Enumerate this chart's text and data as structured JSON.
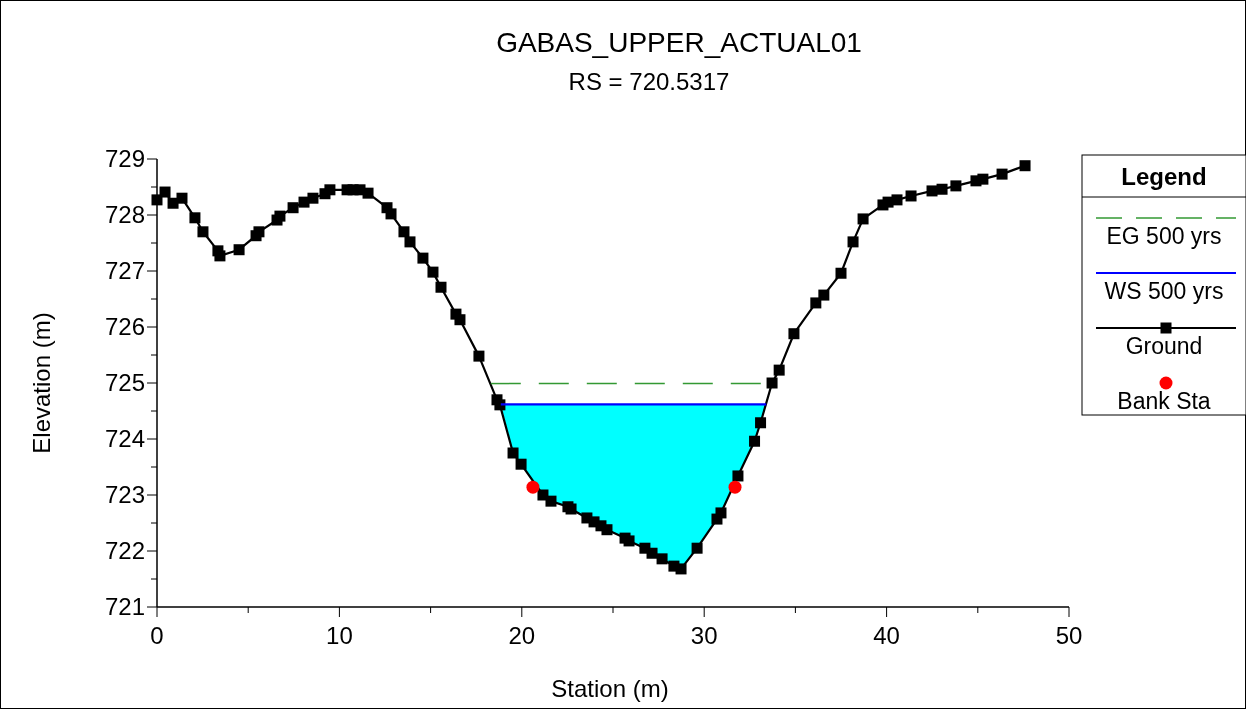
{
  "chart_data": {
    "type": "line",
    "title": "GABAS_UPPER_ACTUAL01",
    "subtitle": "RS = 720.5317",
    "xlabel": "Station (m)",
    "ylabel": "Elevation (m)",
    "xlim": [
      0,
      50
    ],
    "xticks": [
      0,
      10,
      20,
      30,
      40,
      50
    ],
    "ylim": [
      721,
      729
    ],
    "yticks": [
      721,
      722,
      723,
      724,
      725,
      726,
      727,
      728,
      729
    ],
    "legend_title": "Legend",
    "legend": "right",
    "grid": false,
    "series": [
      {
        "name": "EG 500 yrs",
        "type": "line",
        "color": "#339933",
        "line_style": "dashed",
        "marker": "none",
        "x": [
          18.3,
          33.7
        ],
        "values": [
          724.99,
          724.99
        ]
      },
      {
        "name": "WS 500 yrs",
        "type": "line",
        "color": "#0000ff",
        "line_style": "solid",
        "marker": "none",
        "x": [
          18.85,
          33.4
        ],
        "values": [
          724.62,
          724.62
        ]
      },
      {
        "name": "Ground",
        "color": "#000000",
        "line_style": "solid",
        "marker": "square",
        "x": [
          0,
          0.44,
          0.88,
          1.37,
          2.08,
          2.52,
          3.34,
          3.45,
          4.5,
          5.43,
          5.59,
          6.58,
          6.74,
          7.46,
          8.06,
          8.55,
          9.21,
          9.48,
          10.42,
          10.75,
          11.13,
          11.57,
          12.61,
          12.83,
          13.54,
          13.87,
          14.58,
          15.13,
          15.57,
          16.39,
          16.61,
          17.65,
          18.64,
          18.8,
          19.52,
          19.96,
          21.16,
          21.6,
          22.53,
          22.7,
          23.57,
          23.96,
          24.34,
          24.67,
          25.66,
          25.88,
          26.75,
          27.14,
          27.69,
          28.34,
          28.73,
          29.61,
          30.7,
          30.92,
          31.85,
          32.76,
          33.09,
          33.72,
          34.11,
          34.92,
          36.12,
          36.56,
          37.5,
          38.16,
          38.71,
          39.8,
          40.08,
          40.57,
          41.34,
          42.49,
          43.04,
          43.8,
          44.9,
          45.28,
          46.33,
          47.59
        ],
        "values": [
          728.27,
          728.41,
          728.21,
          728.3,
          727.95,
          727.7,
          727.36,
          727.27,
          727.38,
          727.63,
          727.7,
          727.91,
          727.98,
          728.13,
          728.23,
          728.3,
          728.38,
          728.45,
          728.45,
          728.45,
          728.45,
          728.39,
          728.13,
          728.02,
          727.7,
          727.52,
          727.23,
          726.98,
          726.71,
          726.23,
          726.13,
          725.48,
          724.7,
          724.61,
          723.75,
          723.55,
          723.0,
          722.89,
          722.79,
          722.75,
          722.59,
          722.52,
          722.45,
          722.38,
          722.23,
          722.18,
          722.05,
          721.96,
          721.86,
          721.73,
          721.68,
          722.05,
          722.57,
          722.68,
          723.34,
          723.96,
          724.29,
          725.0,
          725.23,
          725.88,
          726.43,
          726.57,
          726.96,
          727.52,
          727.93,
          728.18,
          728.23,
          728.27,
          728.34,
          728.43,
          728.46,
          728.52,
          728.61,
          728.64,
          728.73,
          728.88
        ]
      },
      {
        "name": "Bank Sta",
        "type": "scatter",
        "color": "#ff0000",
        "marker": "circle",
        "x": [
          20.61,
          31.69
        ],
        "values": [
          723.14,
          723.14
        ]
      }
    ]
  }
}
